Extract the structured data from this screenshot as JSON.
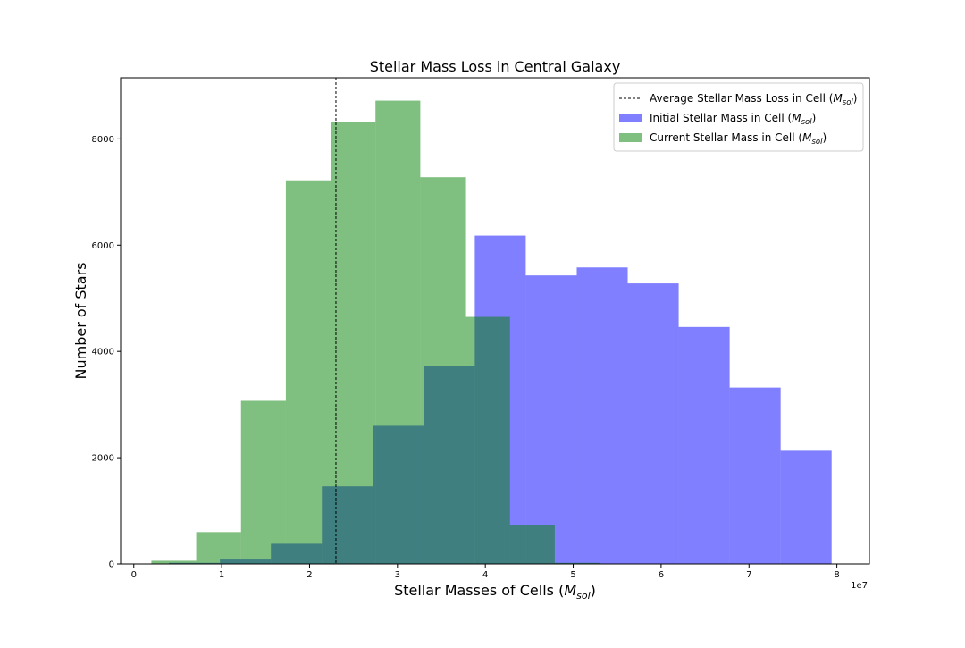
{
  "chart_data": {
    "type": "histogram",
    "title": "Stellar Mass Loss in Central Galaxy",
    "xlabel": "Stellar Masses of Cells (M_sol)",
    "xlabel_parts": {
      "prefix": "Stellar Masses of Cells (",
      "sym": "M",
      "sub": "sol",
      "suffix": ")"
    },
    "ylabel": "Number of Stars",
    "x_scale_label": "1e7",
    "x_scale_factor": 10000000,
    "xlim": [
      -0.15,
      8.37
    ],
    "ylim": [
      0,
      9150
    ],
    "x_ticks": [
      0,
      1,
      2,
      3,
      4,
      5,
      6,
      7,
      8
    ],
    "y_ticks": [
      0,
      2000,
      4000,
      6000,
      8000
    ],
    "grid": false,
    "legend_position": "top-right",
    "vline": {
      "x": 2.3,
      "style": "dashed",
      "color": "#000000",
      "label_prefix": "Average Stellar Mass Loss in Cell (",
      "label_sym": "M",
      "label_sub": "sol",
      "label_suffix": ")"
    },
    "series": [
      {
        "name": "Initial Stellar Mass in Cell (M_sol)",
        "label_prefix": "Initial Stellar Mass in Cell (",
        "label_sym": "M",
        "label_sub": "sol",
        "label_suffix": ")",
        "color": "#0000ff",
        "opacity": 0.5,
        "bin_edges": [
          0.4,
          0.98,
          1.56,
          2.14,
          2.72,
          3.3,
          3.88,
          4.46,
          5.04,
          5.62,
          6.2,
          6.78,
          7.36,
          7.94
        ],
        "counts": [
          20,
          100,
          380,
          1460,
          2600,
          3720,
          6180,
          5430,
          5580,
          5280,
          4460,
          3320,
          2130
        ]
      },
      {
        "name": "Current Stellar Mass in Cell (M_sol)",
        "label_prefix": "Current Stellar Mass in Cell (",
        "label_sym": "M",
        "label_sub": "sol",
        "label_suffix": ")",
        "color": "#008000",
        "opacity": 0.5,
        "bin_edges": [
          0.2,
          0.71,
          1.22,
          1.73,
          2.24,
          2.75,
          3.26,
          3.77,
          4.28,
          4.79,
          5.3
        ],
        "counts": [
          60,
          600,
          3070,
          7220,
          8320,
          8720,
          7280,
          4650,
          740,
          20
        ]
      }
    ]
  }
}
